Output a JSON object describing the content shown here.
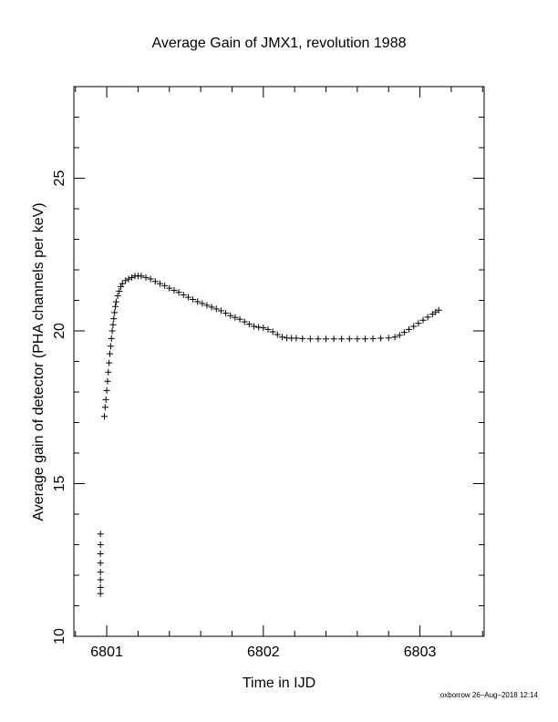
{
  "chart_data": {
    "type": "scatter",
    "title": "Average Gain of JMX1, revolution 1988",
    "xlabel": "Time in IJD",
    "ylabel": "Average gain of detector (PHA channels per keV)",
    "xlim": [
      6800.79,
      6803.41
    ],
    "ylim": [
      10,
      28
    ],
    "x_ticks": [
      6801,
      6802,
      6803
    ],
    "x_tick_labels": [
      "6801",
      "6802",
      "6803"
    ],
    "y_ticks": [
      10,
      15,
      20,
      25
    ],
    "y_tick_labels": [
      "10",
      "15",
      "20",
      "25"
    ],
    "x_minor_step": 0.2,
    "y_minor_step": 1,
    "marker": "plus",
    "grid": false,
    "series": [
      {
        "color": "#000000",
        "points": [
          [
            6800.96,
            11.4
          ],
          [
            6800.96,
            11.6
          ],
          [
            6800.96,
            11.85
          ],
          [
            6800.96,
            12.1
          ],
          [
            6800.96,
            12.4
          ],
          [
            6800.96,
            12.7
          ],
          [
            6800.96,
            13.0
          ],
          [
            6800.96,
            13.35
          ],
          [
            6800.985,
            17.2
          ],
          [
            6800.99,
            17.5
          ],
          [
            6800.995,
            17.75
          ],
          [
            6801.0,
            18.05
          ],
          [
            6801.005,
            18.35
          ],
          [
            6801.01,
            18.65
          ],
          [
            6801.015,
            18.95
          ],
          [
            6801.02,
            19.25
          ],
          [
            6801.025,
            19.5
          ],
          [
            6801.03,
            19.75
          ],
          [
            6801.035,
            20.0
          ],
          [
            6801.04,
            20.2
          ],
          [
            6801.045,
            20.4
          ],
          [
            6801.05,
            20.6
          ],
          [
            6801.055,
            20.8
          ],
          [
            6801.06,
            20.95
          ],
          [
            6801.07,
            21.15
          ],
          [
            6801.08,
            21.3
          ],
          [
            6801.09,
            21.45
          ],
          [
            6801.1,
            21.55
          ],
          [
            6801.12,
            21.65
          ],
          [
            6801.14,
            21.7
          ],
          [
            6801.16,
            21.75
          ],
          [
            6801.18,
            21.8
          ],
          [
            6801.2,
            21.8
          ],
          [
            6801.22,
            21.8
          ],
          [
            6801.25,
            21.75
          ],
          [
            6801.28,
            21.7
          ],
          [
            6801.31,
            21.62
          ],
          [
            6801.34,
            21.55
          ],
          [
            6801.37,
            21.48
          ],
          [
            6801.4,
            21.4
          ],
          [
            6801.43,
            21.33
          ],
          [
            6801.46,
            21.26
          ],
          [
            6801.49,
            21.18
          ],
          [
            6801.52,
            21.1
          ],
          [
            6801.55,
            21.03
          ],
          [
            6801.58,
            20.96
          ],
          [
            6801.61,
            20.9
          ],
          [
            6801.64,
            20.84
          ],
          [
            6801.67,
            20.78
          ],
          [
            6801.7,
            20.72
          ],
          [
            6801.73,
            20.66
          ],
          [
            6801.76,
            20.58
          ],
          [
            6801.79,
            20.5
          ],
          [
            6801.82,
            20.44
          ],
          [
            6801.85,
            20.38
          ],
          [
            6801.88,
            20.3
          ],
          [
            6801.91,
            20.22
          ],
          [
            6801.94,
            20.15
          ],
          [
            6801.97,
            20.12
          ],
          [
            6802.0,
            20.1
          ],
          [
            6802.03,
            20.05
          ],
          [
            6802.06,
            19.97
          ],
          [
            6802.09,
            19.88
          ],
          [
            6802.12,
            19.8
          ],
          [
            6802.15,
            19.77
          ],
          [
            6802.18,
            19.76
          ],
          [
            6802.21,
            19.76
          ],
          [
            6802.25,
            19.75
          ],
          [
            6802.3,
            19.74
          ],
          [
            6802.35,
            19.74
          ],
          [
            6802.4,
            19.74
          ],
          [
            6802.45,
            19.74
          ],
          [
            6802.5,
            19.74
          ],
          [
            6802.55,
            19.74
          ],
          [
            6802.6,
            19.74
          ],
          [
            6802.65,
            19.74
          ],
          [
            6802.7,
            19.75
          ],
          [
            6802.75,
            19.76
          ],
          [
            6802.8,
            19.77
          ],
          [
            6802.84,
            19.8
          ],
          [
            6802.87,
            19.86
          ],
          [
            6802.9,
            19.95
          ],
          [
            6802.93,
            20.05
          ],
          [
            6802.96,
            20.15
          ],
          [
            6802.99,
            20.25
          ],
          [
            6803.02,
            20.35
          ],
          [
            6803.05,
            20.45
          ],
          [
            6803.08,
            20.55
          ],
          [
            6803.1,
            20.62
          ],
          [
            6803.12,
            20.68
          ]
        ]
      }
    ]
  },
  "footer_text": "oxborrow 26–Aug–2018 12:14"
}
